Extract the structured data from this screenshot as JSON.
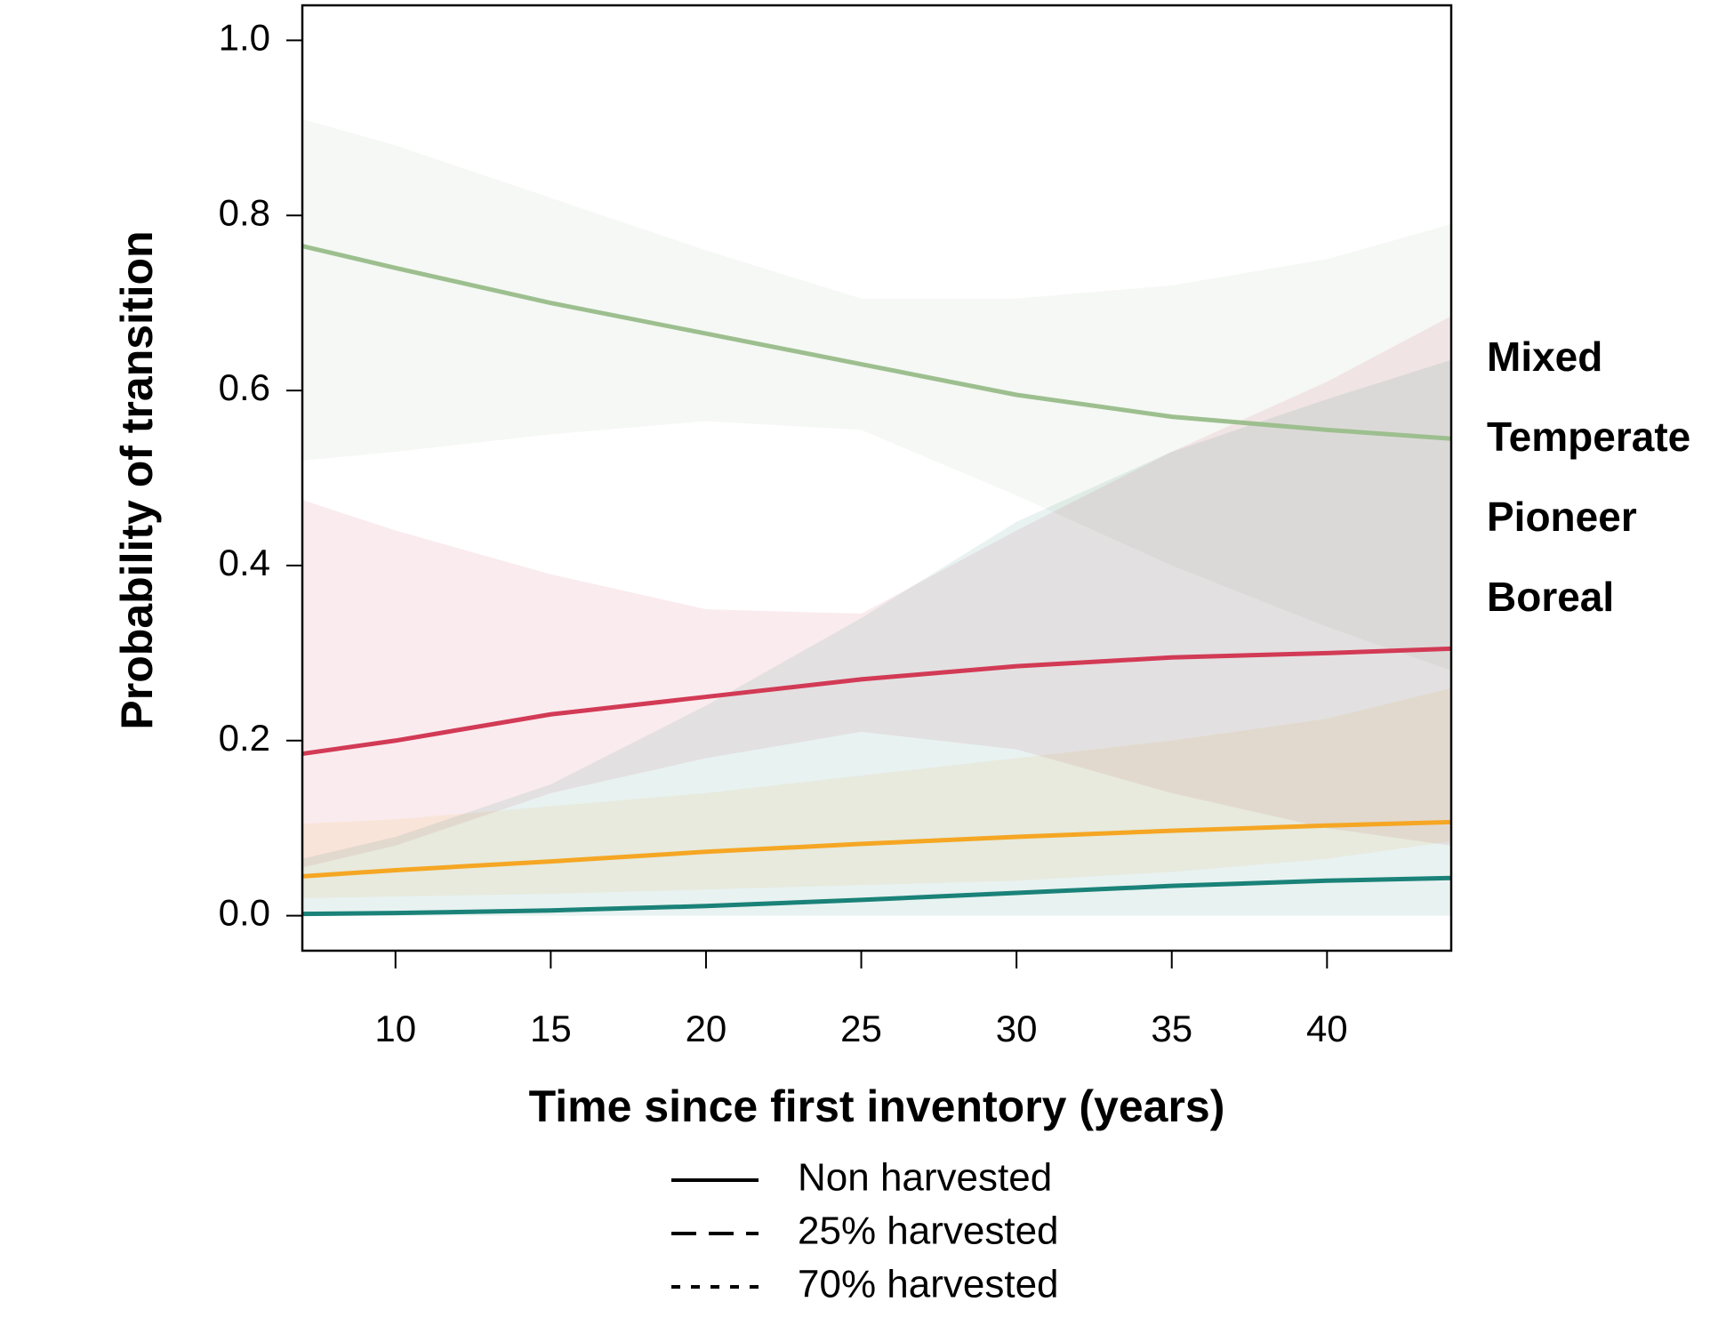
{
  "chart_data": {
    "type": "line",
    "x_label": "Time since first inventory (years)",
    "y_label": "Probability of transition",
    "x": [
      7,
      10,
      15,
      20,
      25,
      30,
      35,
      40,
      44
    ],
    "xlim": [
      7,
      44
    ],
    "ylim": [
      -0.04,
      1.04
    ],
    "xticks": [
      10,
      15,
      20,
      25,
      30,
      35,
      40
    ],
    "yticks": [
      {
        "value": 0,
        "label": "0.0"
      },
      0.2,
      0.4,
      0.6,
      0.8,
      {
        "value": 1,
        "label": "1.0"
      }
    ],
    "grid": false,
    "legend_position": "right",
    "series": [
      {
        "name": "Mixed",
        "color": "#9dbf8f",
        "values": [
          0.765,
          0.74,
          0.7,
          0.665,
          0.63,
          0.595,
          0.57,
          0.555,
          0.545
        ],
        "upper": [
          0.91,
          0.88,
          0.82,
          0.76,
          0.705,
          0.705,
          0.72,
          0.75,
          0.79
        ],
        "lower": [
          0.52,
          0.53,
          0.55,
          0.565,
          0.555,
          0.48,
          0.4,
          0.33,
          0.28
        ]
      },
      {
        "name": "Temperate",
        "color": "#d23a55",
        "values": [
          0.185,
          0.2,
          0.23,
          0.25,
          0.27,
          0.285,
          0.295,
          0.3,
          0.305
        ],
        "upper": [
          0.475,
          0.44,
          0.39,
          0.35,
          0.345,
          0.44,
          0.53,
          0.61,
          0.685
        ],
        "lower": [
          0.055,
          0.08,
          0.14,
          0.18,
          0.21,
          0.19,
          0.14,
          0.1,
          0.08
        ]
      },
      {
        "name": "Pioneer",
        "color": "#f5a623",
        "values": [
          0.045,
          0.052,
          0.062,
          0.073,
          0.082,
          0.09,
          0.097,
          0.103,
          0.107
        ],
        "upper": [
          0.105,
          0.11,
          0.125,
          0.14,
          0.16,
          0.18,
          0.2,
          0.225,
          0.26
        ],
        "lower": [
          0.02,
          0.022,
          0.025,
          0.03,
          0.035,
          0.04,
          0.05,
          0.065,
          0.085
        ]
      },
      {
        "name": "Boreal",
        "color": "#1a8278",
        "values": [
          0.002,
          0.003,
          0.006,
          0.011,
          0.018,
          0.026,
          0.034,
          0.04,
          0.043
        ],
        "upper": [
          0.065,
          0.09,
          0.15,
          0.24,
          0.34,
          0.45,
          0.53,
          0.59,
          0.635
        ],
        "lower": [
          0,
          0,
          0,
          0,
          0,
          0,
          0,
          0,
          0
        ]
      }
    ],
    "linetype_legend": [
      {
        "label": "Non harvested",
        "dash": "solid"
      },
      {
        "label": "25% harvested",
        "dash": "dashed"
      },
      {
        "label": "70% harvested",
        "dash": "dotted"
      }
    ]
  }
}
